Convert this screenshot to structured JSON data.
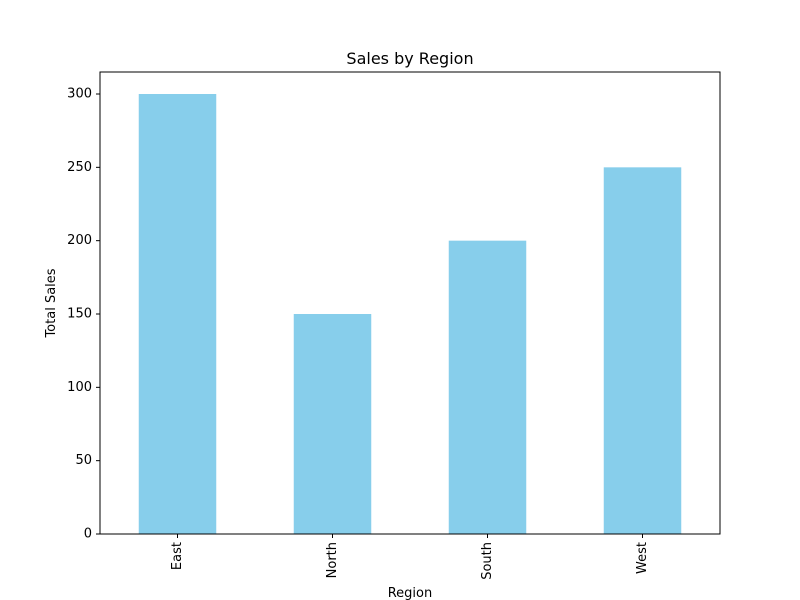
{
  "chart_data": {
    "type": "bar",
    "title": "Sales by Region",
    "xlabel": "Region",
    "ylabel": "Total Sales",
    "categories": [
      "East",
      "North",
      "South",
      "West"
    ],
    "values": [
      300,
      150,
      200,
      250
    ],
    "ylim": [
      0,
      315
    ],
    "yticks": [
      0,
      50,
      100,
      150,
      200,
      250,
      300
    ],
    "bar_color": "#87CEEB",
    "grid": false,
    "legend": "none"
  }
}
